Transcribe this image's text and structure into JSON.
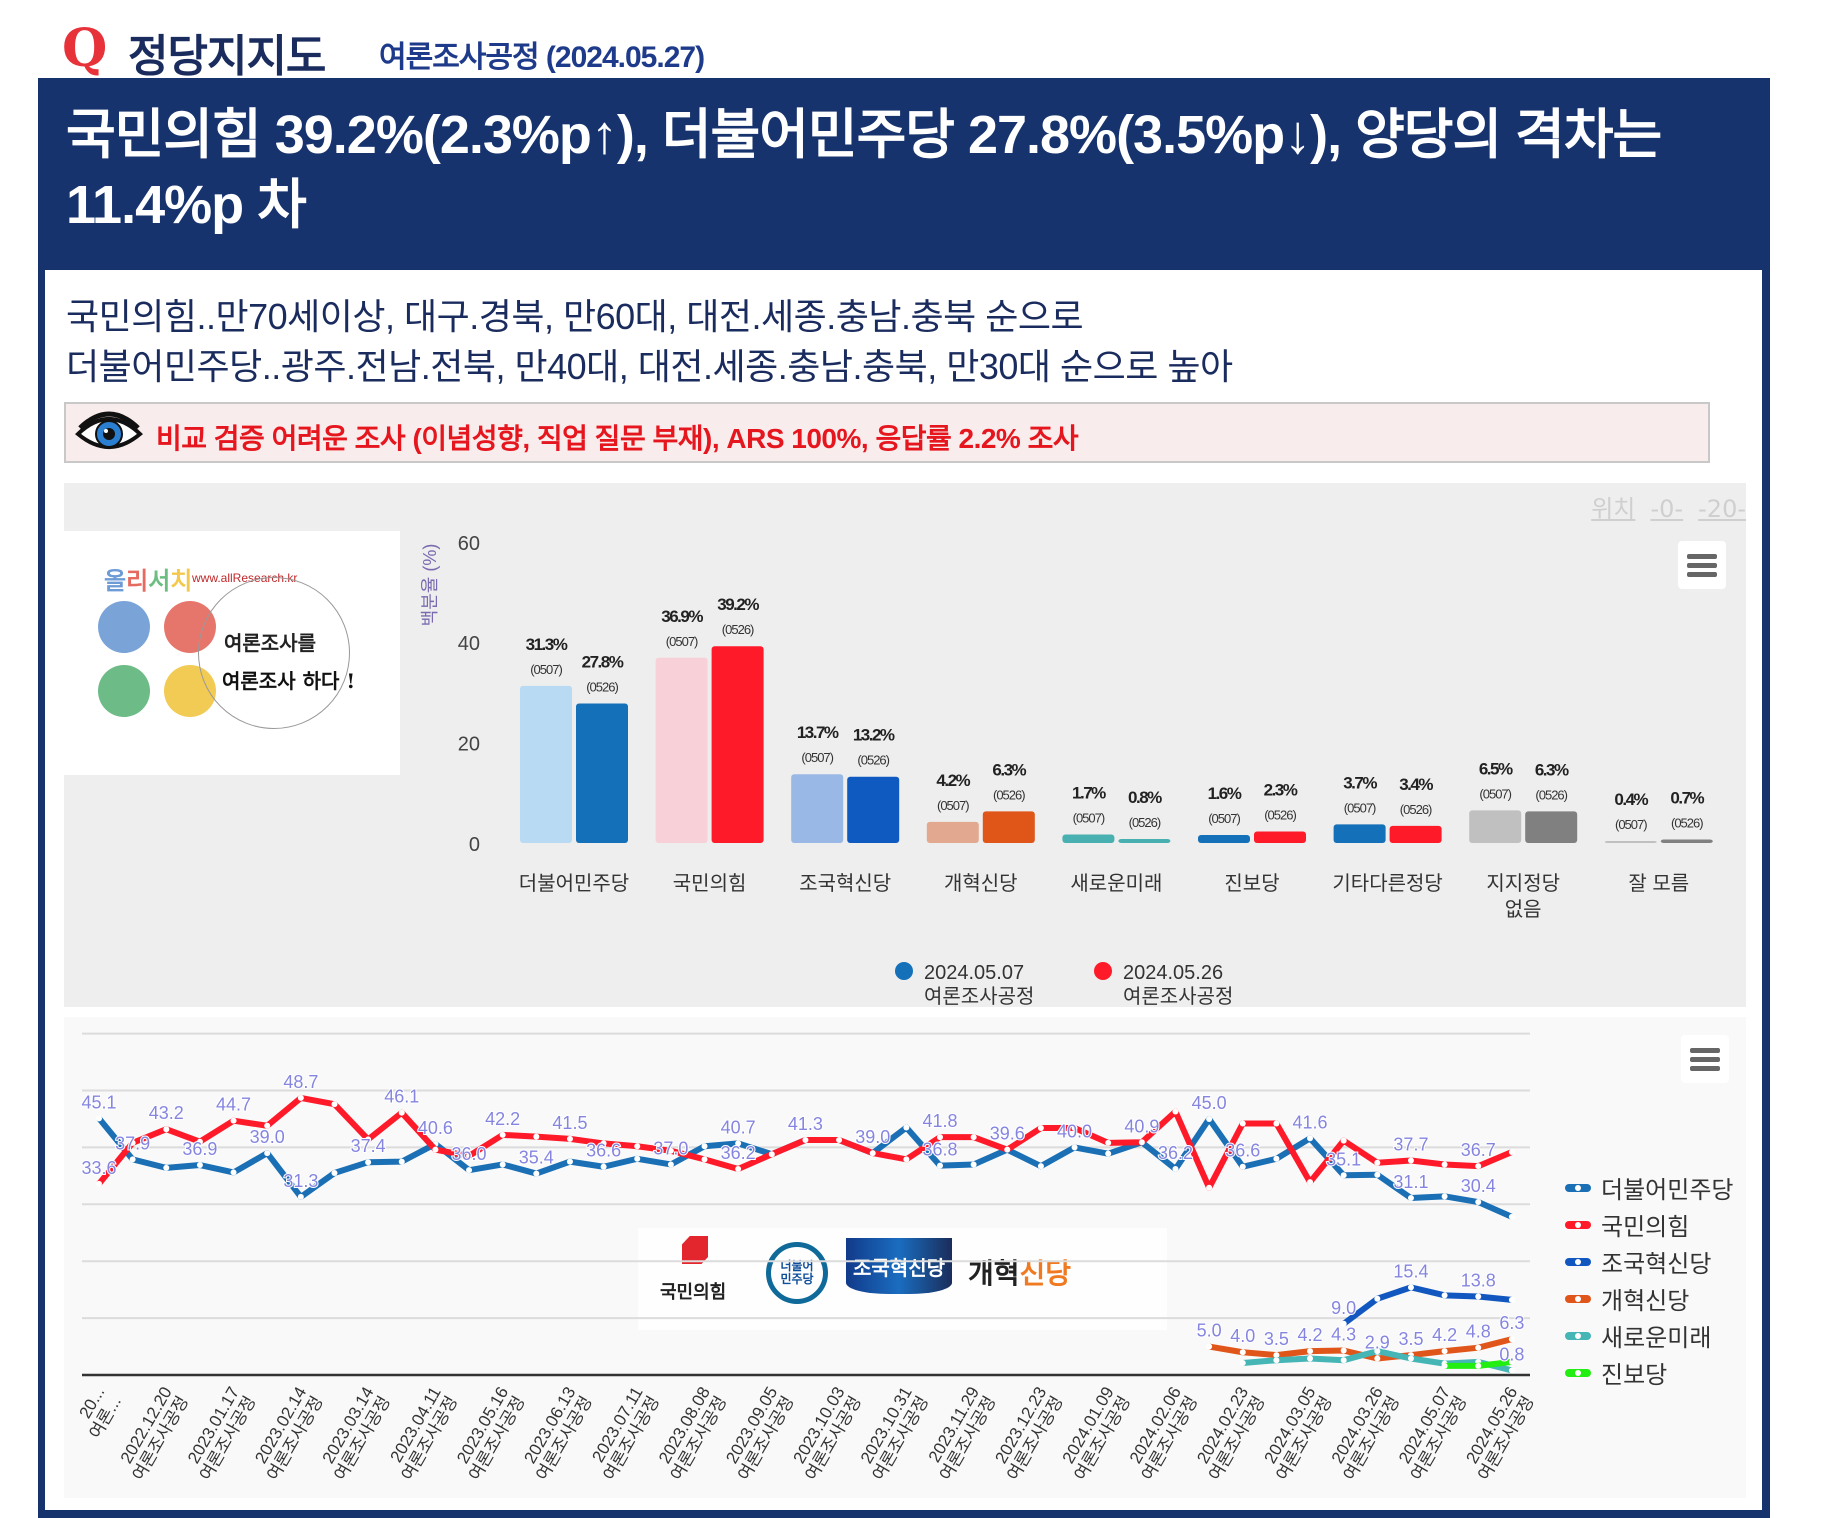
{
  "header": {
    "q_mark": "Q",
    "title": "정당지지도",
    "subtitle": "여론조사공정 (2024.05.27)"
  },
  "headline": "국민의힘 39.2%(2.3%p↑), 더불어민주당 27.8%(3.5%p↓), 양당의 격차는 11.4%p 차",
  "summary": [
    "국민의힘..만70세이상, 대구.경북, 만60대, 대전.세종.충남.충북 순으로",
    "더불어민주당..광주.전남.전북, 만40대, 대전.세종.충남.충북, 만30대 순으로 높아"
  ],
  "notice": {
    "icon": "eye-icon",
    "text": "비교 검증 어려운 조사 (이념성향, 직업 질문 부재), ARS 100%, 응답률 2.2% 조사"
  },
  "logo": {
    "brand": "올리서치",
    "url": "www.allResearch.kr",
    "slogan_1": "여론조사를",
    "slogan_2": "여론조사 하다 !"
  },
  "position_links": [
    "위치",
    "-0-",
    "-20-"
  ],
  "party_logos": [
    "국민의힘",
    "더불어민주당",
    "조국혁신당",
    "개혁신당"
  ],
  "chart_data": [
    {
      "type": "bar",
      "ylabel": "백분율 (%)",
      "ylim": [
        0,
        60
      ],
      "yticks": [
        0,
        20,
        40,
        60
      ],
      "categories": [
        "더불어민주당",
        "국민의힘",
        "조국혁신당",
        "개혁신당",
        "새로운미래",
        "진보당",
        "기타다른정당",
        "지지정당\n없음",
        "잘 모름"
      ],
      "series": [
        {
          "name": "2024.05.07",
          "sub": "여론조사공정",
          "tag": "(0507)",
          "legend_color": "#1470b8",
          "values": [
            31.3,
            36.9,
            13.7,
            4.2,
            1.7,
            1.6,
            3.7,
            6.5,
            0.4
          ],
          "colors": [
            "#b8daf2",
            "#f7d0d8",
            "#9ab8e6",
            "#e2a890",
            "#48b0b0",
            "#1470b8",
            "#1470b8",
            "#c0c0c0",
            "#c0c0c0"
          ]
        },
        {
          "name": "2024.05.26",
          "sub": "여론조사공정",
          "tag": "(0526)",
          "legend_color": "#ff1a2a",
          "values": [
            27.8,
            39.2,
            13.2,
            6.3,
            0.8,
            2.3,
            3.4,
            6.3,
            0.7
          ],
          "colors": [
            "#1470b8",
            "#ff1a2a",
            "#0f5ac0",
            "#e05518",
            "#48b0b0",
            "#ff1a2a",
            "#ff1a2a",
            "#808080",
            "#808080"
          ]
        }
      ],
      "legend": "bottom-center"
    },
    {
      "type": "line",
      "ylim": [
        0,
        60
      ],
      "grid": true,
      "legend": "right",
      "x_count": 43,
      "xticks": [
        "20...|여론...",
        "2022.12.20|여론조사공정",
        "2023.01.17|여론조사공정",
        "2023.02.14|여론조사공정",
        "2023.03.14|여론조사공정",
        "2023.04.11|여론조사공정",
        "2023.05.16|여론조사공정",
        "2023.06.13|여론조사공정",
        "2023.07.11|여론조사공정",
        "2023.08.08|여론조사공정",
        "2023.09.05|여론조사공정",
        "2023.10.03|여론조사공정",
        "2023.10.31|여론조사공정",
        "2023.11.29|여론조사공정",
        "2023.12.23|여론조사공정",
        "2024.01.09|여론조사공정",
        "2024.02.06|여론조사공정",
        "2024.02.23|여론조사공정",
        "2024.03.05|여론조사공정",
        "2024.03.26|여론조사공정",
        "2024.05.07|여론조사공정",
        "2024.05.26|여론조사공정"
      ],
      "label_color": "#8585e0",
      "series": [
        {
          "name": "더불어민주당",
          "color": "#1a6fb5",
          "start": 0,
          "values": [
            45.1,
            37.9,
            36.4,
            36.9,
            35.6,
            39.0,
            31.3,
            35.5,
            37.4,
            37.5,
            40.6,
            36.0,
            37.0,
            35.4,
            37.5,
            36.6,
            38.0,
            37.0,
            40.2,
            40.7,
            38.8,
            41.3,
            41.3,
            39.0,
            43.5,
            36.8,
            37.0,
            39.6,
            36.7,
            40.0,
            38.9,
            40.9,
            36.2,
            45.0,
            36.6,
            38.0,
            41.6,
            35.1,
            35.2,
            31.1,
            31.4,
            30.4,
            27.8
          ],
          "labels": {
            "0": "45.1",
            "1": "37.9",
            "3": "36.9",
            "5": "39.0",
            "6": "31.3",
            "8": "37.4",
            "10": "40.6",
            "11": "36.0",
            "13": "35.4",
            "15": "36.6",
            "17": "37.0",
            "19": "40.7",
            "21": "41.3",
            "23": "39.0",
            "25": "36.8",
            "27": "39.6",
            "29": "40.0",
            "31": "40.9",
            "32": "36.2",
            "33": "45.0",
            "34": "36.6",
            "36": "41.6",
            "37": "35.1",
            "39": "31.1",
            "41": "30.4"
          }
        },
        {
          "name": "국민의힘",
          "color": "#ff1a2a",
          "start": 0,
          "values": [
            33.6,
            40.8,
            43.2,
            41.0,
            44.7,
            43.8,
            48.7,
            47.6,
            41.4,
            46.1,
            39.6,
            38.5,
            42.2,
            41.9,
            41.5,
            40.7,
            40.2,
            39.4,
            37.9,
            36.2,
            38.8,
            41.3,
            41.3,
            39.0,
            37.9,
            41.8,
            41.8,
            39.6,
            43.4,
            43.4,
            40.8,
            40.9,
            46.3,
            32.9,
            44.2,
            44.2,
            33.9,
            41.2,
            37.3,
            37.7,
            37.0,
            36.7,
            39.2
          ],
          "labels": {
            "0": "33.6",
            "2": "43.2",
            "4": "44.7",
            "6": "48.7",
            "9": "46.1",
            "12": "42.2",
            "14": "41.5",
            "19": "36.2",
            "25": "41.8",
            "39": "37.7",
            "41": "36.7"
          }
        },
        {
          "name": "조국혁신당",
          "color": "#1257c0",
          "start": 37,
          "values": [
            9.0,
            13.4,
            15.4,
            14.0,
            13.8,
            13.2
          ],
          "labels": {
            "0": "9.0",
            "2": "15.4",
            "4": "13.8"
          }
        },
        {
          "name": "개혁신당",
          "color": "#e0561a",
          "start": 33,
          "values": [
            5.0,
            4.0,
            3.5,
            4.2,
            4.3,
            2.9,
            3.5,
            4.2,
            4.8,
            6.3
          ],
          "labels": {
            "0": "5.0",
            "1": "4.0",
            "2": "3.5",
            "3": "4.2",
            "4": "4.3",
            "5": "2.9",
            "6": "3.5",
            "7": "4.2",
            "8": "4.8",
            "9": "6.3"
          }
        },
        {
          "name": "새로운미래",
          "color": "#45b5b5",
          "start": 34,
          "values": [
            2.1,
            2.6,
            2.9,
            2.6,
            4.2,
            2.9,
            2.0,
            2.3,
            0.8
          ],
          "labels": {
            "8": "0.8"
          }
        },
        {
          "name": "진보당",
          "color": "#22ee11",
          "start": 40,
          "values": [
            1.6,
            1.6,
            2.3
          ],
          "labels": {}
        }
      ]
    }
  ]
}
